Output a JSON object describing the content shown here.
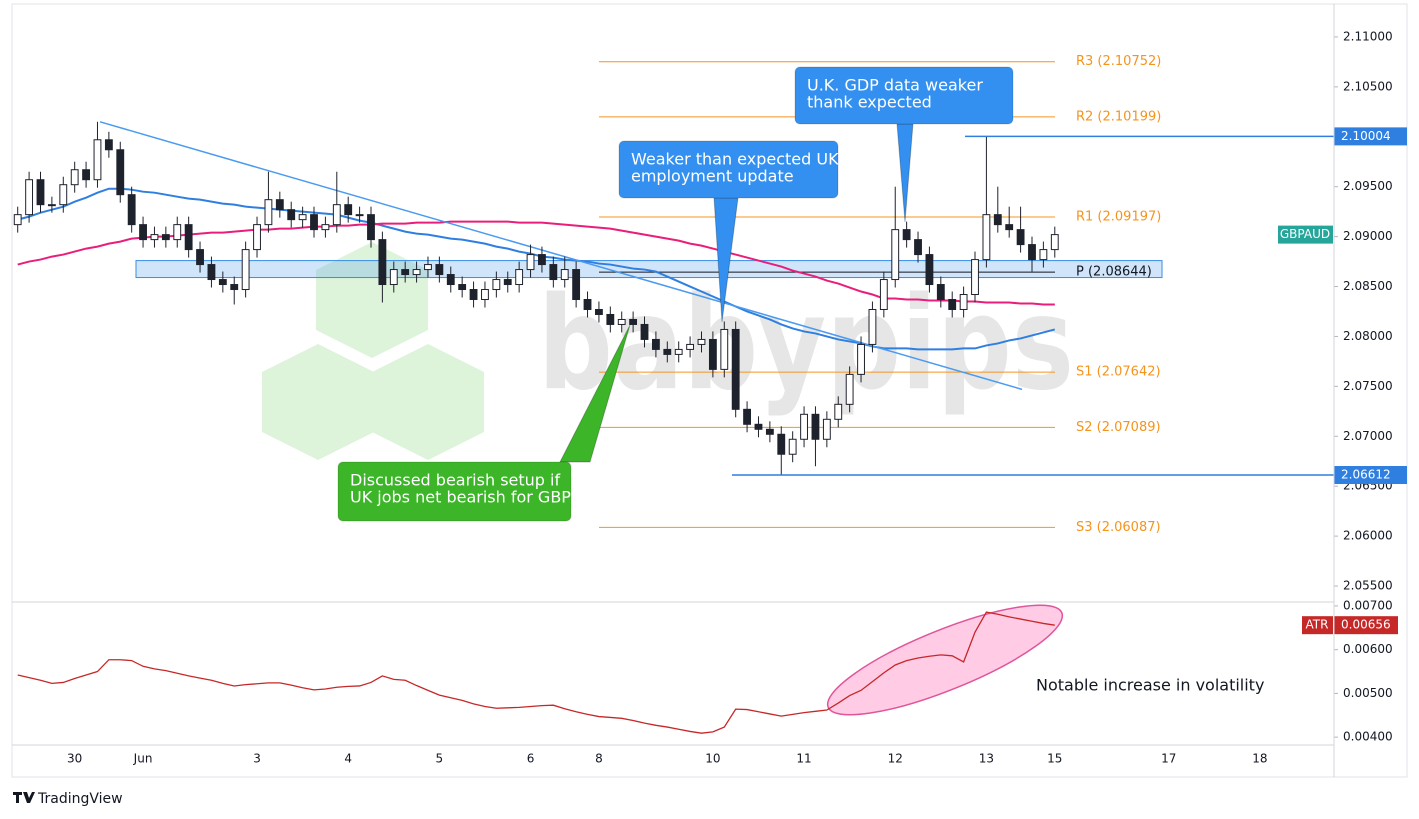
{
  "chart_data": {
    "type": "candlestick",
    "symbol": "GBPAUD",
    "watermark": "babypips",
    "branding": "TradingView",
    "categories": [
      null,
      null,
      null,
      null,
      null,
      "30",
      null,
      null,
      null,
      null,
      null,
      "Jun",
      null,
      null,
      null,
      null,
      null,
      null,
      null,
      null,
      null,
      "3",
      null,
      null,
      null,
      null,
      null,
      null,
      null,
      "4",
      null,
      null,
      null,
      null,
      null,
      null,
      null,
      "5",
      null,
      null,
      null,
      null,
      null,
      null,
      null,
      "6",
      null,
      null,
      null,
      null,
      null,
      "8",
      null,
      null,
      null,
      null,
      null,
      null,
      null,
      null,
      null,
      "10",
      null,
      null,
      null,
      null,
      null,
      null,
      null,
      "11",
      null,
      null,
      null,
      null,
      null,
      null,
      null,
      "12",
      null,
      null,
      null,
      null,
      null,
      null,
      null,
      "13",
      null,
      null,
      null,
      null,
      null,
      "15",
      null,
      null,
      null,
      null,
      null,
      null,
      null,
      null,
      null,
      "17",
      null,
      null,
      null,
      null,
      null,
      null,
      null,
      "18",
      null,
      null,
      null,
      null,
      null,
      null
    ],
    "open": [
      2.0912,
      2.0922,
      2.0957,
      2.0932,
      2.0932,
      2.0952,
      2.0967,
      2.0957,
      2.0997,
      2.0987,
      2.0942,
      2.0912,
      2.0897,
      2.0902,
      2.0897,
      2.0912,
      2.0887,
      2.0872,
      2.0857,
      2.0852,
      2.0847,
      2.0887,
      2.0912,
      2.0937,
      2.0927,
      2.0917,
      2.0922,
      2.0907,
      2.0912,
      2.0932,
      2.0922,
      2.0922,
      2.0897,
      2.0852,
      2.0867,
      2.0862,
      2.0867,
      2.0872,
      2.0862,
      2.0852,
      2.0847,
      2.0837,
      2.0847,
      2.0857,
      2.0852,
      2.0867,
      2.0882,
      2.0872,
      2.0857,
      2.0867,
      2.0837,
      2.0827,
      2.0822,
      2.0812,
      2.0817,
      2.0812,
      2.0797,
      2.0787,
      2.0782,
      2.0787,
      2.0792,
      2.0797,
      2.0767,
      2.0807,
      2.0727,
      2.0712,
      2.0707,
      2.0702,
      2.0682,
      2.0697,
      2.0722,
      2.0697,
      2.0717,
      2.0732,
      2.0762,
      2.0792,
      2.0827,
      2.0857,
      2.0907,
      2.0897,
      2.0882,
      2.0852,
      2.0837,
      2.0827,
      2.0842,
      2.0877,
      2.0922,
      2.0912,
      2.0907,
      2.0892,
      2.0877,
      2.0887,
      null,
      null,
      null,
      null,
      null,
      null,
      null,
      null,
      null,
      null,
      null,
      null,
      null,
      null,
      null,
      null,
      null,
      null,
      null,
      null,
      null,
      null,
      null,
      null
    ],
    "high": [
      2.093,
      2.0965,
      2.0965,
      2.094,
      2.096,
      2.0975,
      2.0975,
      2.1015,
      2.1005,
      2.0995,
      2.095,
      2.092,
      2.091,
      2.091,
      2.092,
      2.092,
      2.0895,
      2.088,
      2.0865,
      2.086,
      2.0895,
      2.092,
      2.0965,
      2.0945,
      2.0935,
      2.093,
      2.093,
      2.092,
      2.0965,
      2.094,
      2.093,
      2.093,
      2.0905,
      2.0875,
      2.0875,
      2.0875,
      2.088,
      2.088,
      2.087,
      2.086,
      2.0855,
      2.0855,
      2.0865,
      2.0865,
      2.0875,
      2.0892,
      2.089,
      2.088,
      2.088,
      2.0875,
      2.0845,
      2.0835,
      2.083,
      2.0825,
      2.0825,
      2.082,
      2.0805,
      2.0795,
      2.0795,
      2.08,
      2.0805,
      2.0805,
      2.0815,
      2.0815,
      2.0735,
      2.072,
      2.0715,
      2.071,
      2.0705,
      2.073,
      2.073,
      2.0725,
      2.074,
      2.077,
      2.08,
      2.0835,
      2.0865,
      2.095,
      2.0915,
      2.0905,
      2.089,
      2.086,
      2.0845,
      2.085,
      2.0885,
      2.1,
      2.095,
      2.093,
      2.093,
      2.09,
      2.0895,
      2.091,
      null,
      null,
      null,
      null,
      null,
      null,
      null,
      null,
      null,
      null,
      null,
      null,
      null,
      null,
      null,
      null,
      null,
      null,
      null,
      null,
      null,
      null,
      null,
      null
    ],
    "low": [
      2.0904,
      2.0914,
      2.0924,
      2.0924,
      2.0924,
      2.0944,
      2.0949,
      2.0949,
      2.0979,
      2.0934,
      2.0904,
      2.0889,
      2.0889,
      2.0889,
      2.0889,
      2.0879,
      2.0864,
      2.0849,
      2.0844,
      2.0832,
      2.0839,
      2.0879,
      2.0904,
      2.0919,
      2.0909,
      2.0909,
      2.0899,
      2.0899,
      2.0904,
      2.0914,
      2.0914,
      2.0889,
      2.0834,
      2.0844,
      2.0854,
      2.0854,
      2.0859,
      2.0854,
      2.0844,
      2.0839,
      2.0829,
      2.0829,
      2.0839,
      2.0844,
      2.0844,
      2.0859,
      2.0864,
      2.0849,
      2.0849,
      2.0829,
      2.0819,
      2.0814,
      2.0804,
      2.0804,
      2.0804,
      2.0789,
      2.0779,
      2.0774,
      2.0774,
      2.0779,
      2.0784,
      2.0759,
      2.0759,
      2.0719,
      2.0704,
      2.0699,
      2.0694,
      2.0661,
      2.0674,
      2.0689,
      2.067,
      2.0689,
      2.0709,
      2.0724,
      2.0754,
      2.0784,
      2.0819,
      2.0849,
      2.0889,
      2.0874,
      2.0844,
      2.0829,
      2.0819,
      2.0819,
      2.0834,
      2.0869,
      2.0904,
      2.0899,
      2.0884,
      2.0865,
      2.0869,
      2.0879,
      null,
      null,
      null,
      null,
      null,
      null,
      null,
      null,
      null,
      null,
      null,
      null,
      null,
      null,
      null,
      null,
      null,
      null,
      null,
      null,
      null,
      null,
      null,
      null
    ],
    "close": [
      2.0922,
      2.0957,
      2.0932,
      2.0932,
      2.0952,
      2.0967,
      2.0957,
      2.0997,
      2.0987,
      2.0942,
      2.0912,
      2.0897,
      2.0902,
      2.0897,
      2.0912,
      2.0887,
      2.0872,
      2.0857,
      2.0852,
      2.0847,
      2.0887,
      2.0912,
      2.0937,
      2.0927,
      2.0917,
      2.0922,
      2.0907,
      2.0912,
      2.0932,
      2.0922,
      2.0922,
      2.0897,
      2.0852,
      2.0867,
      2.0862,
      2.0867,
      2.0872,
      2.0862,
      2.0852,
      2.0847,
      2.0837,
      2.0847,
      2.0857,
      2.0852,
      2.0867,
      2.0882,
      2.0872,
      2.0857,
      2.0867,
      2.0837,
      2.0827,
      2.0822,
      2.0812,
      2.0817,
      2.0812,
      2.0797,
      2.0787,
      2.0782,
      2.0787,
      2.0792,
      2.0797,
      2.0767,
      2.0807,
      2.0727,
      2.0712,
      2.0707,
      2.0702,
      2.0682,
      2.0697,
      2.0722,
      2.0697,
      2.0717,
      2.0732,
      2.0762,
      2.0792,
      2.0827,
      2.0857,
      2.0907,
      2.0897,
      2.0882,
      2.0852,
      2.0837,
      2.0827,
      2.0842,
      2.0877,
      2.0922,
      2.0912,
      2.0907,
      2.0892,
      2.0877,
      2.0887,
      2.0902,
      null,
      null,
      null,
      null,
      null,
      null,
      null,
      null,
      null,
      null,
      null,
      null,
      null,
      null,
      null,
      null,
      null,
      null,
      null,
      null,
      null,
      null,
      null,
      null
    ],
    "up_color": "#ffffff",
    "down_color": "#1e222d",
    "ma_lines": [
      {
        "color": "#2f7fe0",
        "values": [
          2.0917,
          2.092,
          2.0924,
          2.0927,
          2.093,
          2.0935,
          2.0939,
          2.0944,
          2.0948,
          2.0948,
          2.0947,
          2.0945,
          2.0944,
          2.0942,
          2.094,
          2.0938,
          2.0937,
          2.0935,
          2.0933,
          2.0932,
          2.093,
          2.0929,
          2.0928,
          2.0927,
          2.0926,
          2.0925,
          2.0924,
          2.0923,
          2.0922,
          2.0919,
          2.0916,
          2.0914,
          2.0911,
          2.0908,
          2.0905,
          2.0903,
          2.0902,
          2.09,
          2.0898,
          2.0897,
          2.0895,
          2.0893,
          2.089,
          2.0888,
          2.0885,
          2.0883,
          2.088,
          2.0879,
          2.0877,
          2.0876,
          2.0875,
          2.0873,
          2.0872,
          2.087,
          2.0868,
          2.0867,
          2.0865,
          2.086,
          2.0855,
          2.085,
          2.0845,
          2.084,
          2.0835,
          2.083,
          2.0825,
          2.0821,
          2.0817,
          2.0812,
          2.0808,
          2.0805,
          2.0803,
          2.08,
          2.0797,
          2.0795,
          2.0793,
          2.079,
          2.0788,
          2.0788,
          2.0788,
          2.0787,
          2.0787,
          2.0787,
          2.0787,
          2.0788,
          2.0788,
          2.0791,
          2.0793,
          2.0796,
          2.0798,
          2.0801,
          2.0804,
          2.0807,
          null,
          null,
          null,
          null,
          null,
          null,
          null,
          null,
          null,
          null,
          null,
          null,
          null,
          null,
          null,
          null,
          null,
          null,
          null,
          null,
          null,
          null,
          null,
          null
        ]
      },
      {
        "color": "#e91e7a",
        "values": [
          2.0872,
          2.0875,
          2.0877,
          2.088,
          2.0882,
          2.0885,
          2.0888,
          2.089,
          2.0893,
          2.0895,
          2.0898,
          2.0899,
          2.09,
          2.09,
          2.0901,
          2.0902,
          2.0903,
          2.0904,
          2.0904,
          2.0905,
          2.0906,
          2.0907,
          2.0907,
          2.0908,
          2.0908,
          2.0909,
          2.091,
          2.091,
          2.0911,
          2.0911,
          2.0912,
          2.0912,
          2.0913,
          2.0913,
          2.0913,
          2.0914,
          2.0914,
          2.0914,
          2.0915,
          2.0915,
          2.0915,
          2.0915,
          2.0915,
          2.0915,
          2.0914,
          2.0914,
          2.0914,
          2.0913,
          2.0912,
          2.0911,
          2.091,
          2.0909,
          2.0908,
          2.0906,
          2.0904,
          2.0902,
          2.09,
          2.0898,
          2.0896,
          2.0893,
          2.0891,
          2.0888,
          2.0885,
          2.0882,
          2.0879,
          2.0876,
          2.0873,
          2.087,
          2.0866,
          2.0863,
          2.086,
          2.0856,
          2.0853,
          2.0849,
          2.0845,
          2.0842,
          2.0838,
          2.0838,
          2.0837,
          2.0837,
          2.0836,
          2.0836,
          2.0836,
          2.0835,
          2.0835,
          2.0834,
          2.0834,
          2.0834,
          2.0833,
          2.0833,
          2.0832,
          2.0832,
          null,
          null,
          null,
          null,
          null,
          null,
          null,
          null,
          null,
          null,
          null,
          null,
          null,
          null,
          null,
          null,
          null,
          null,
          null,
          null,
          null,
          null,
          null,
          null
        ]
      }
    ],
    "ylim": [
      2.0534,
      2.1133
    ],
    "yticks": [
      {
        "value": 2.055,
        "label": "2.05500"
      },
      {
        "value": 2.06,
        "label": "2.06000"
      },
      {
        "value": 2.065,
        "label": "2.06500"
      },
      {
        "value": 2.07,
        "label": "2.07000"
      },
      {
        "value": 2.075,
        "label": "2.07500"
      },
      {
        "value": 2.08,
        "label": "2.08000"
      },
      {
        "value": 2.085,
        "label": "2.08500"
      },
      {
        "value": 2.09,
        "label": "2.09000"
      },
      {
        "value": 2.095,
        "label": "2.09500"
      },
      {
        "value": 2.1,
        "label": "2.10000"
      },
      {
        "value": 2.105,
        "label": "2.10500"
      },
      {
        "value": 2.11,
        "label": "2.11000"
      }
    ],
    "levels": [
      {
        "label": "R3 (2.10752)",
        "value": 2.10752,
        "color": "#f5941d"
      },
      {
        "label": "R2 (2.10199)",
        "value": 2.10199,
        "color": "#f5941d"
      },
      {
        "label": "R1 (2.09197)",
        "value": 2.09197,
        "color": "#f5941d"
      },
      {
        "label": "P (2.08644)",
        "value": 2.08644,
        "color": "#131722"
      },
      {
        "label": "S1 (2.07642)",
        "value": 2.07642,
        "color": "#f5941d"
      },
      {
        "label": "S2 (2.07089)",
        "value": 2.07089,
        "color": "#f5941d"
      },
      {
        "label": "S3 (2.06087)",
        "value": 2.06087,
        "color": "#f5941d"
      }
    ],
    "markers": [
      2.10004,
      2.06612
    ],
    "marker_color": "#2f7fe0",
    "zone": [
      2.0859,
      2.0876
    ],
    "trendline": [
      2.1015,
      2.0747
    ],
    "annotations": [
      {
        "lines": [
          "U.K. GDP data weaker",
          "thank expected"
        ],
        "color": "#3390f0"
      },
      {
        "lines": [
          "Weaker than expected UK",
          "employment update"
        ],
        "color": "#3390f0"
      },
      {
        "lines": [
          "Discussed bearish setup if",
          "UK jobs net bearish for GBP"
        ],
        "color": "#3cb528"
      }
    ],
    "atr": {
      "name": "ATR",
      "color": "#c62828",
      "note": "Notable increase in volatility",
      "values": [
        0.00542,
        0.00536,
        0.0053,
        0.00523,
        0.00525,
        0.00534,
        0.00542,
        0.0055,
        0.00577,
        0.00577,
        0.00575,
        0.00562,
        0.00556,
        0.00552,
        0.00546,
        0.0054,
        0.00535,
        0.0053,
        0.00523,
        0.00517,
        0.0052,
        0.00522,
        0.00524,
        0.00524,
        0.00519,
        0.00513,
        0.00508,
        0.0051,
        0.00514,
        0.00516,
        0.00517,
        0.00525,
        0.0054,
        0.00532,
        0.0053,
        0.00518,
        0.00507,
        0.00496,
        0.0049,
        0.00484,
        0.00476,
        0.0047,
        0.00466,
        0.00467,
        0.00468,
        0.0047,
        0.00472,
        0.00473,
        0.00465,
        0.00458,
        0.00452,
        0.00447,
        0.00445,
        0.00443,
        0.00438,
        0.00432,
        0.00427,
        0.00423,
        0.00418,
        0.00413,
        0.00409,
        0.00412,
        0.00423,
        0.00464,
        0.00463,
        0.00458,
        0.00453,
        0.00448,
        0.00452,
        0.00456,
        0.00459,
        0.00462,
        0.00478,
        0.00495,
        0.00507,
        0.00527,
        0.00547,
        0.00565,
        0.00575,
        0.00581,
        0.00585,
        0.00588,
        0.00586,
        0.00572,
        0.0064,
        0.00686,
        0.00681,
        0.00675,
        0.0067,
        0.00665,
        0.0066,
        0.00656,
        null,
        null,
        null,
        null,
        null,
        null,
        null,
        null,
        null,
        null,
        null,
        null,
        null,
        null,
        null,
        null,
        null,
        null,
        null,
        null,
        null,
        null,
        null,
        null
      ],
      "ylim": [
        0.00382,
        0.00709
      ],
      "yticks": [
        {
          "value": 0.004,
          "label": "0.00400"
        },
        {
          "value": 0.005,
          "label": "0.00500"
        },
        {
          "value": 0.006,
          "label": "0.00600"
        },
        {
          "value": 0.007,
          "label": "0.00700"
        }
      ]
    }
  }
}
